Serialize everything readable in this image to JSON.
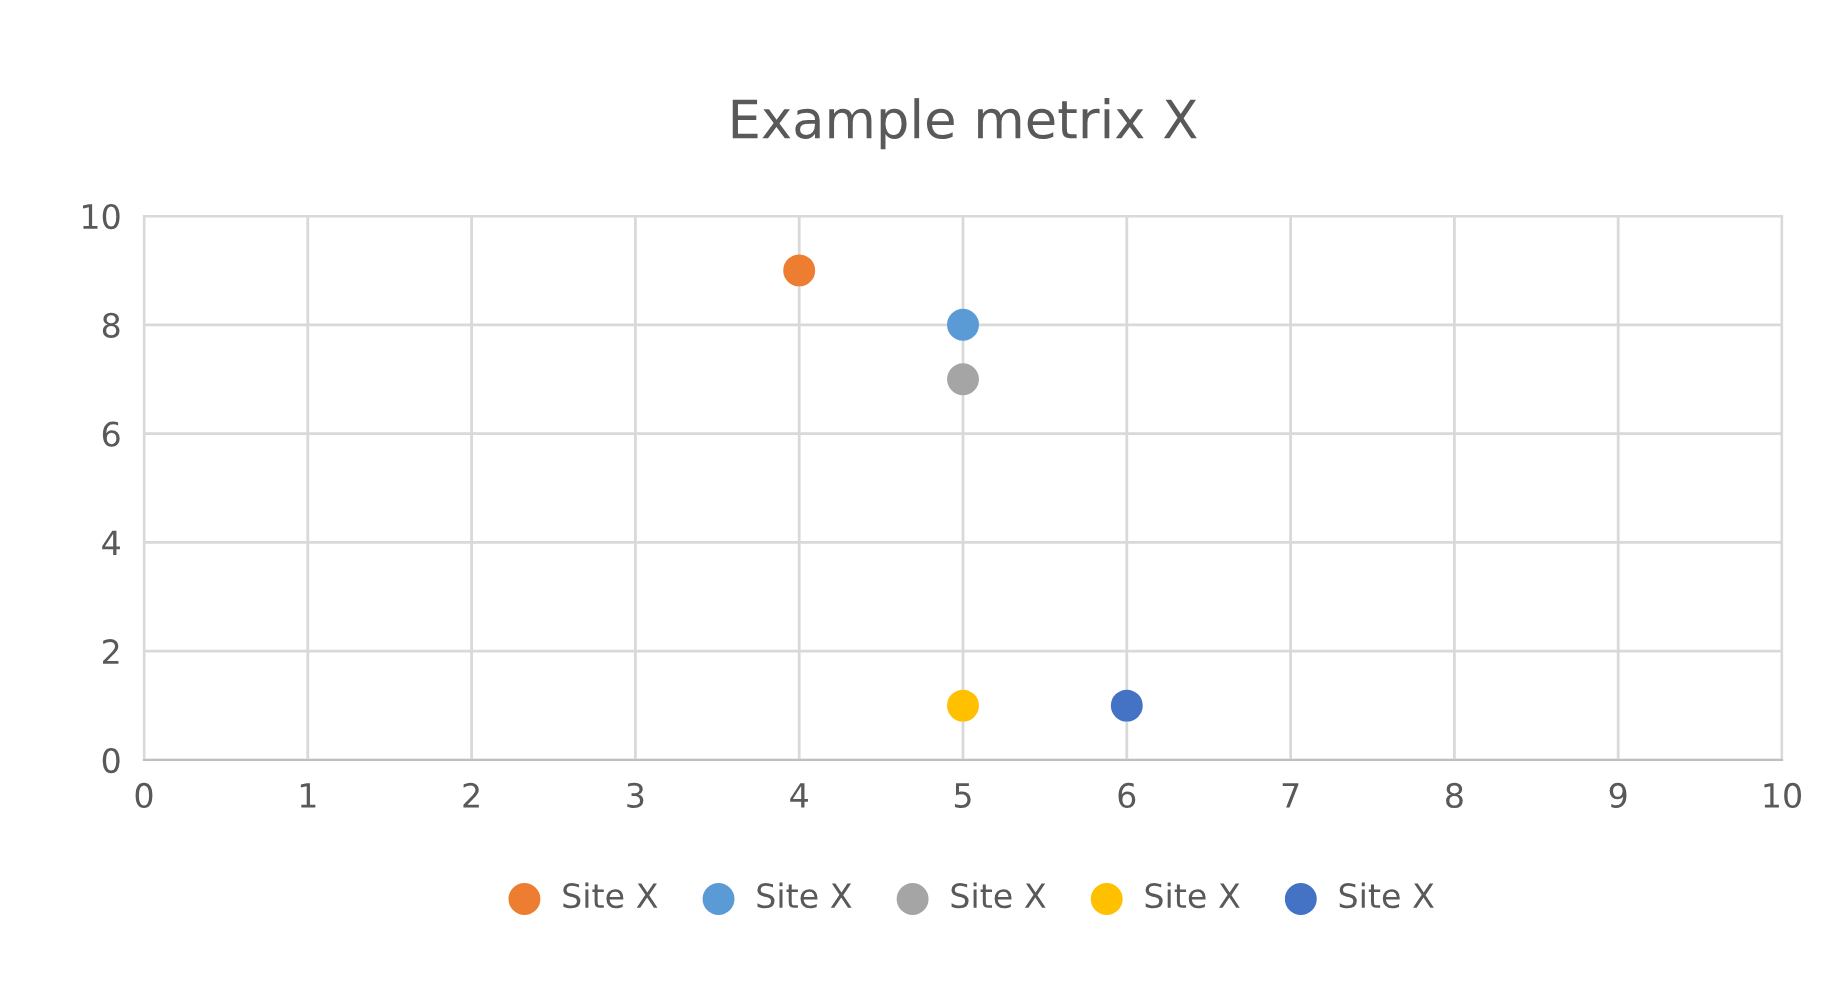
{
  "chart_data": {
    "type": "scatter",
    "title": "Example metrix X",
    "series": [
      {
        "name": "Site X",
        "color": "#ed7d31",
        "x": [
          4
        ],
        "values": [
          9
        ]
      },
      {
        "name": "Site X",
        "color": "#5b9bd5",
        "x": [
          5
        ],
        "values": [
          8
        ]
      },
      {
        "name": "Site X",
        "color": "#a5a5a5",
        "x": [
          5
        ],
        "values": [
          7
        ]
      },
      {
        "name": "Site X",
        "color": "#ffc000",
        "x": [
          5
        ],
        "values": [
          1
        ]
      },
      {
        "name": "Site X",
        "color": "#4472c4",
        "x": [
          6
        ],
        "values": [
          1
        ]
      }
    ],
    "xlim": [
      0,
      10
    ],
    "xticks": [
      0,
      1,
      2,
      3,
      4,
      5,
      6,
      7,
      8,
      9,
      10
    ],
    "ylim": [
      0,
      10
    ],
    "yticks": [
      0,
      2,
      4,
      6,
      8,
      10
    ],
    "grid": true,
    "legend": "bottom",
    "marker": "circle"
  }
}
